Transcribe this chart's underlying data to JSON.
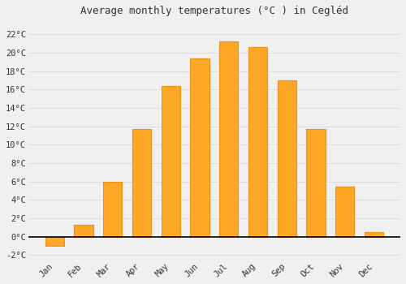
{
  "title": "Average monthly temperatures (°C ) in Cegléd",
  "months": [
    "Jan",
    "Feb",
    "Mar",
    "Apr",
    "May",
    "Jun",
    "Jul",
    "Aug",
    "Sep",
    "Oct",
    "Nov",
    "Dec"
  ],
  "values": [
    -1.0,
    1.3,
    6.0,
    11.7,
    16.4,
    19.4,
    21.2,
    20.6,
    17.0,
    11.7,
    5.4,
    0.5
  ],
  "bar_color": "#FFA726",
  "bar_edge_color": "#E6951A",
  "background_color": "#f0f0f0",
  "plot_bg_color": "#f0f0f0",
  "ylim": [
    -2.5,
    23.5
  ],
  "yticks": [
    -2,
    0,
    2,
    4,
    6,
    8,
    10,
    12,
    14,
    16,
    18,
    20,
    22
  ],
  "ytick_labels": [
    "-2°C",
    "0°C",
    "2°C",
    "4°C",
    "6°C",
    "8°C",
    "10°C",
    "12°C",
    "14°C",
    "16°C",
    "18°C",
    "20°C",
    "22°C"
  ],
  "title_fontsize": 9,
  "tick_fontsize": 7.5,
  "grid_color": "#d8d8d8",
  "zero_line_color": "#000000",
  "figsize": [
    5.0,
    3.5
  ],
  "dpi": 100
}
